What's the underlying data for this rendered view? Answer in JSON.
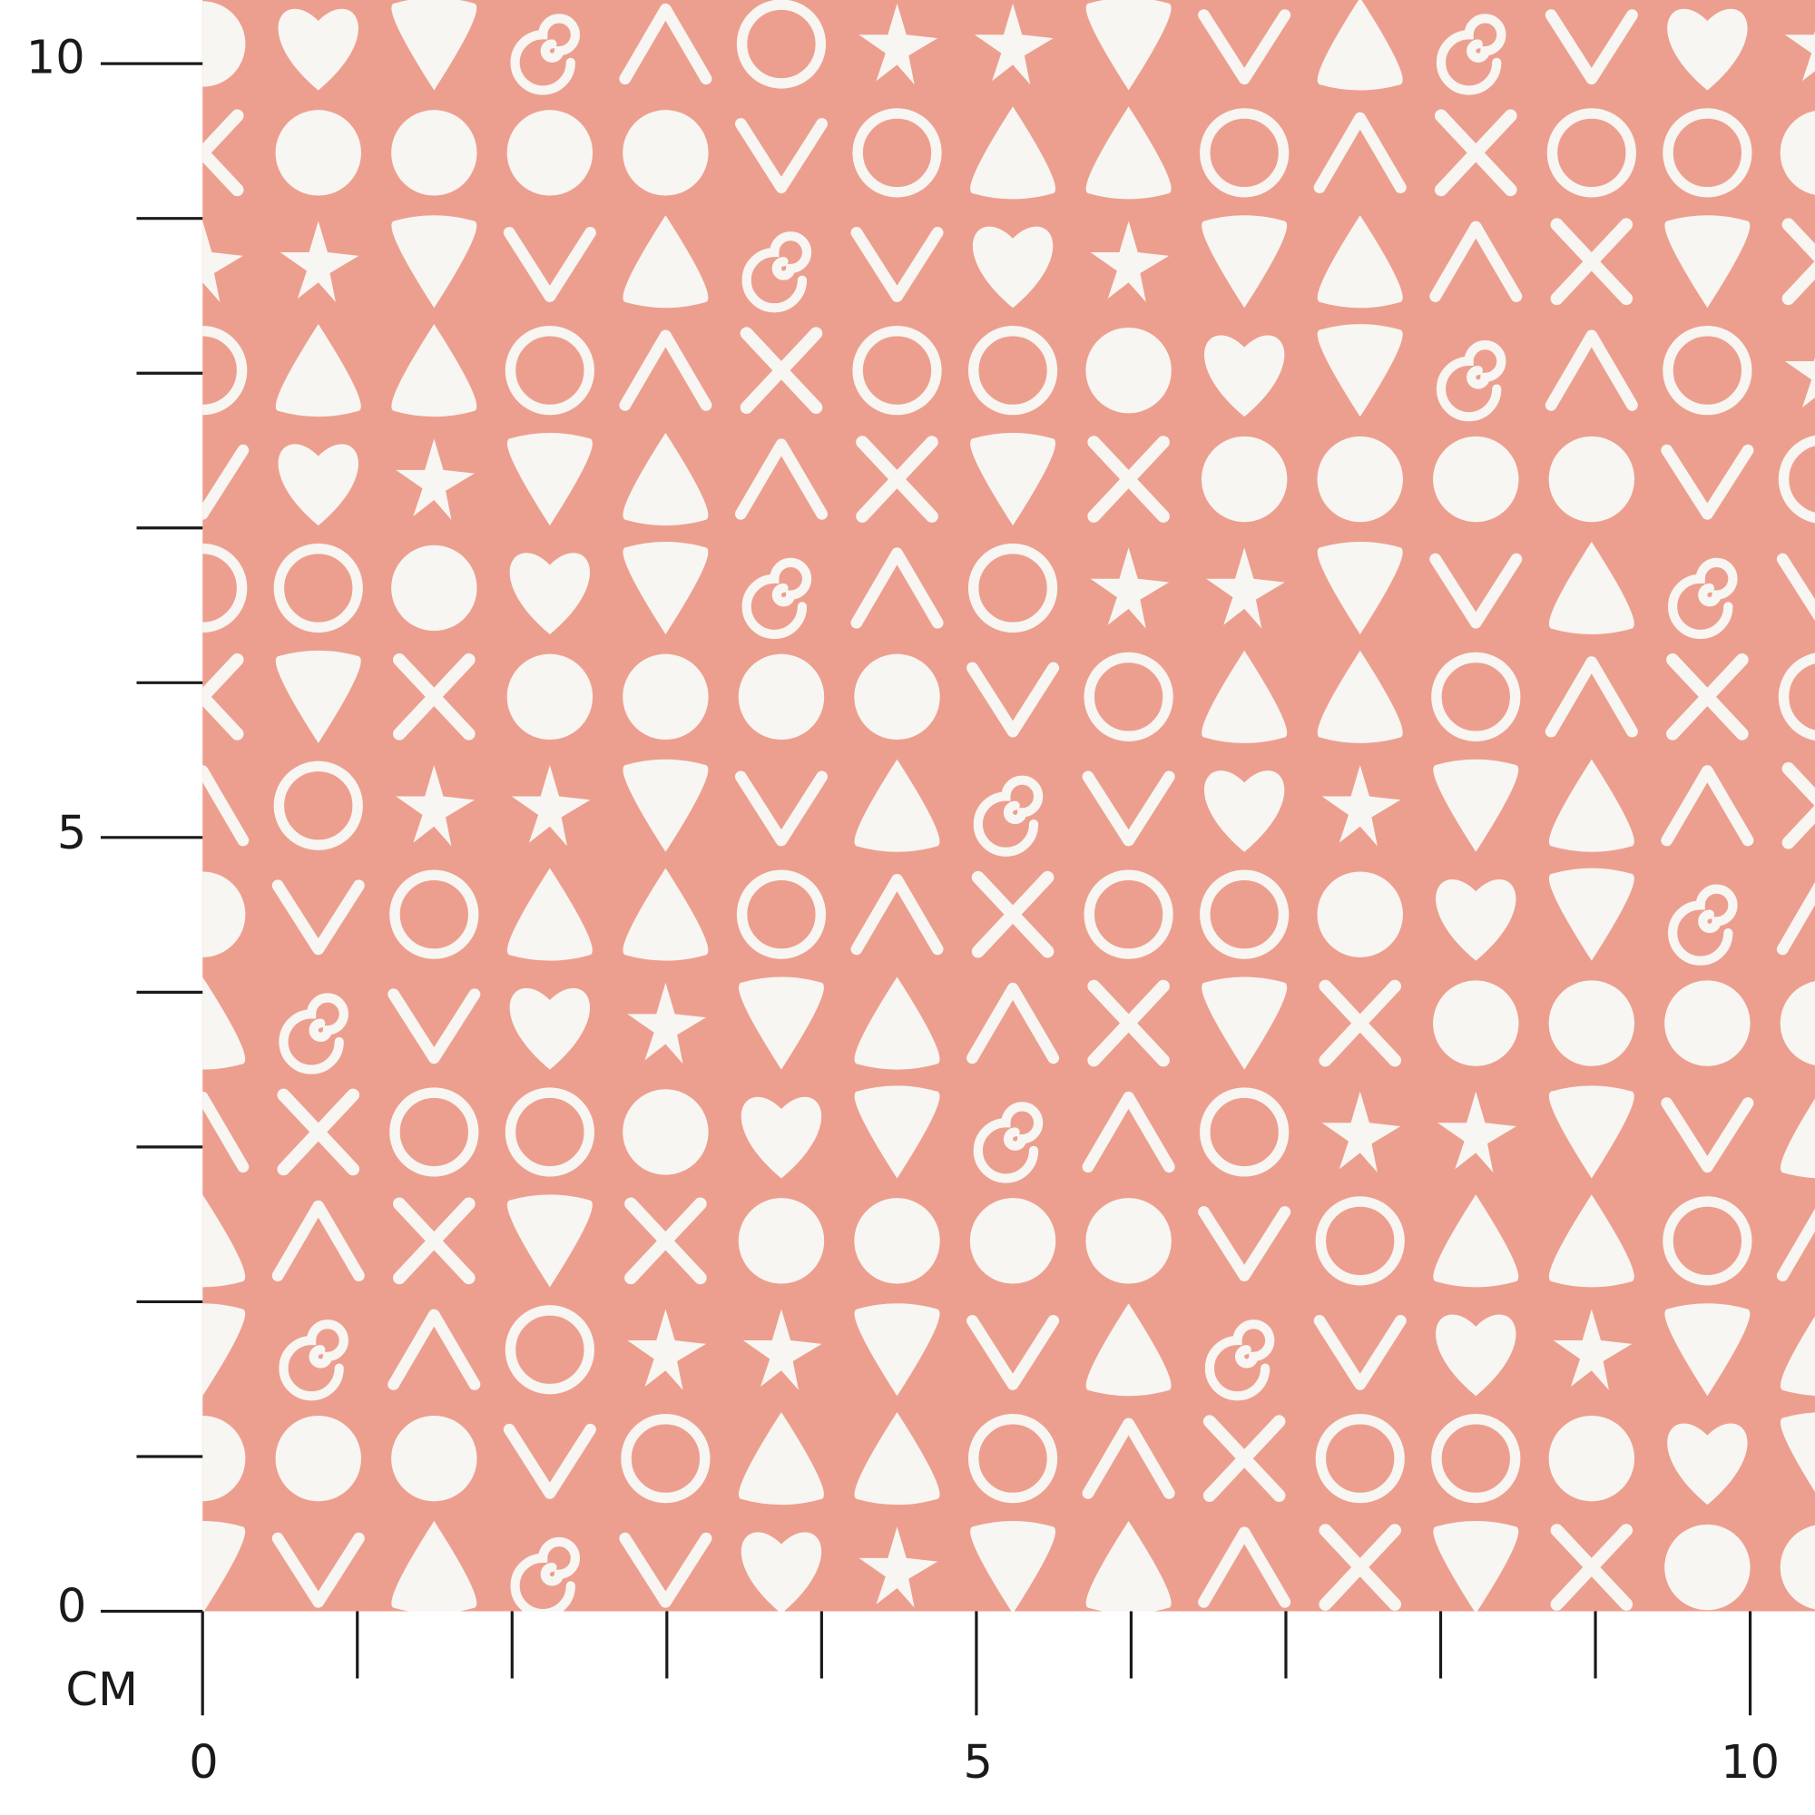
{
  "ruler": {
    "unit": "CM",
    "vertical": {
      "labels": [
        "10",
        "5",
        "0"
      ]
    },
    "horizontal": {
      "labels": [
        "0",
        "5",
        "10"
      ]
    }
  }
}
